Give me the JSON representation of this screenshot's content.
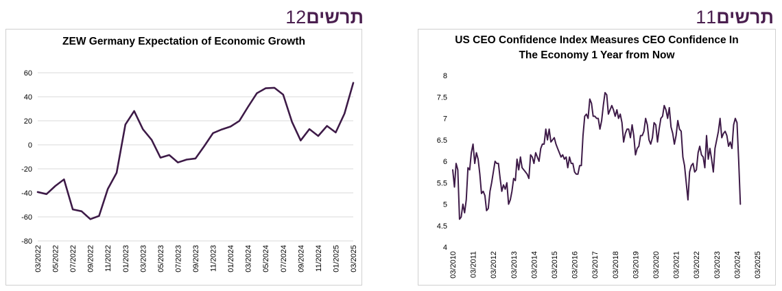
{
  "headings": {
    "left": {
      "word": "תרשים",
      "number": "12"
    },
    "right": {
      "word": "תרשים",
      "number": "11"
    }
  },
  "colors": {
    "line": "#3d1a47",
    "heading": "#4a1f4f",
    "grid": "#d9d9d9"
  },
  "chart_data": [
    {
      "type": "line",
      "title": "ZEW Germany Expectation of Economic Growth",
      "xlabel": "",
      "ylabel": "",
      "ylim": [
        -80,
        60
      ],
      "yticks": [
        60,
        40,
        20,
        0,
        -20,
        -40,
        -60,
        -80
      ],
      "grid": true,
      "xtick_labels": [
        "03/2022",
        "05/2022",
        "07/2022",
        "09/2022",
        "11/2022",
        "01/2023",
        "03/2023",
        "05/2023",
        "07/2023",
        "09/2023",
        "11/2023",
        "01/2024",
        "03/2024",
        "05/2024",
        "07/2024",
        "09/2024",
        "11/2024",
        "01/2025",
        "03/2025"
      ],
      "x_index_range": [
        0,
        36
      ],
      "series": [
        {
          "values": [
            -39.3,
            -41.0,
            -34.3,
            -28.8,
            -53.8,
            -55.3,
            -61.9,
            -59.2,
            -36.7,
            -23.3,
            16.9,
            28.1,
            13.0,
            4.1,
            -10.7,
            -8.5,
            -14.7,
            -12.3,
            -11.4,
            -1.1,
            9.8,
            12.8,
            15.2,
            19.9,
            31.7,
            42.9,
            47.1,
            47.5,
            41.8,
            19.2,
            3.6,
            13.1,
            7.4,
            15.7,
            10.3,
            26.0,
            51.6
          ]
        }
      ]
    },
    {
      "type": "line",
      "title": "US CEO Confidence Index Measures CEO Confidence In The Economy 1 Year from Now",
      "xlabel": "",
      "ylabel": "",
      "ylim": [
        4,
        8
      ],
      "yticks": [
        8,
        7.5,
        7,
        6.5,
        6,
        5.5,
        5,
        4.5,
        4
      ],
      "grid": false,
      "xtick_labels": [
        "03/2010",
        "03/2011",
        "03/2012",
        "03/2013",
        "03/2014",
        "03/2015",
        "03/2016",
        "03/2017",
        "03/2018",
        "03/2019",
        "03/2020",
        "03/2021",
        "03/2022",
        "03/2023",
        "03/2024",
        "03/2025"
      ],
      "x_index_range": [
        0,
        180
      ],
      "series": [
        {
          "values": [
            5.8,
            5.4,
            5.95,
            5.8,
            4.65,
            4.7,
            5.0,
            4.8,
            5.1,
            5.85,
            5.8,
            6.2,
            6.4,
            5.95,
            6.2,
            6.05,
            5.7,
            5.25,
            5.3,
            5.2,
            4.85,
            4.9,
            5.3,
            5.5,
            5.75,
            6.0,
            5.95,
            5.95,
            5.6,
            5.3,
            5.45,
            5.35,
            5.5,
            5.0,
            5.1,
            5.3,
            5.6,
            5.55,
            6.05,
            5.8,
            6.1,
            5.85,
            5.8,
            5.75,
            5.7,
            5.6,
            6.15,
            6.1,
            5.95,
            6.2,
            6.1,
            6.0,
            6.3,
            6.4,
            6.4,
            6.75,
            6.5,
            6.75,
            6.45,
            6.5,
            6.55,
            6.4,
            6.3,
            6.2,
            6.1,
            6.15,
            6.05,
            6.1,
            5.85,
            6.1,
            5.95,
            5.95,
            5.75,
            5.7,
            5.7,
            5.9,
            5.9,
            6.6,
            7.05,
            7.1,
            7.0,
            7.45,
            7.35,
            7.05,
            7.05,
            7.0,
            7.0,
            6.75,
            6.95,
            7.3,
            7.6,
            7.55,
            7.1,
            7.2,
            7.3,
            7.2,
            7.05,
            7.2,
            7.0,
            7.1,
            6.9,
            6.45,
            6.65,
            6.75,
            6.75,
            6.55,
            6.85,
            6.6,
            6.15,
            6.3,
            6.35,
            6.6,
            6.6,
            6.7,
            7.0,
            6.85,
            6.5,
            6.4,
            6.55,
            6.9,
            6.85,
            6.45,
            6.75,
            7.0,
            7.05,
            7.3,
            7.2,
            7.0,
            7.25,
            6.8,
            6.65,
            6.4,
            6.6,
            6.95,
            6.75,
            6.7,
            6.1,
            5.9,
            5.5,
            5.1,
            5.75,
            5.9,
            5.95,
            5.75,
            5.8,
            6.2,
            6.35,
            6.15,
            6.1,
            5.85,
            6.6,
            6.05,
            6.3,
            6.05,
            5.75,
            6.3,
            6.5,
            6.7,
            7.0,
            6.55,
            6.65,
            6.7,
            6.6,
            6.35,
            6.45,
            6.3,
            6.85,
            7.0,
            6.9,
            6.0,
            5.0
          ]
        }
      ]
    }
  ]
}
